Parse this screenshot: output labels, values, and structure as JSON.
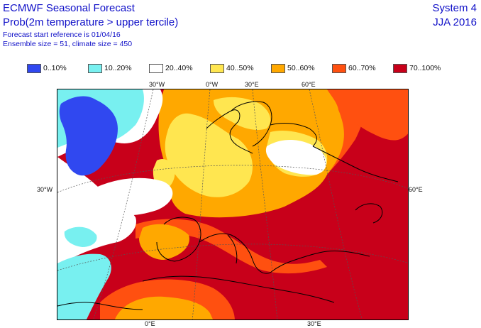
{
  "header": {
    "title": "ECMWF Seasonal Forecast",
    "subtitle": "Prob(2m temperature > upper tercile)",
    "start_ref": "Forecast start reference is 01/04/16",
    "ensemble": "Ensemble size = 51, climate size = 450",
    "system": "System 4",
    "period": "JJA 2016"
  },
  "legend": [
    {
      "label": "0..10%",
      "color": "#3048f0"
    },
    {
      "label": "10..20%",
      "color": "#78f0f0"
    },
    {
      "label": "20..40%",
      "color": "#ffffff"
    },
    {
      "label": "40..50%",
      "color": "#ffe650"
    },
    {
      "label": "50..60%",
      "color": "#ffa800"
    },
    {
      "label": "60..70%",
      "color": "#ff5010"
    },
    {
      "label": "70..100%",
      "color": "#c8001a"
    }
  ],
  "grid_labels": {
    "top": [
      "30°W",
      "0°W",
      "30°E",
      "60°E"
    ],
    "left": "30°W",
    "right": "60°E",
    "bottom": [
      "0°E",
      "30°E"
    ]
  }
}
